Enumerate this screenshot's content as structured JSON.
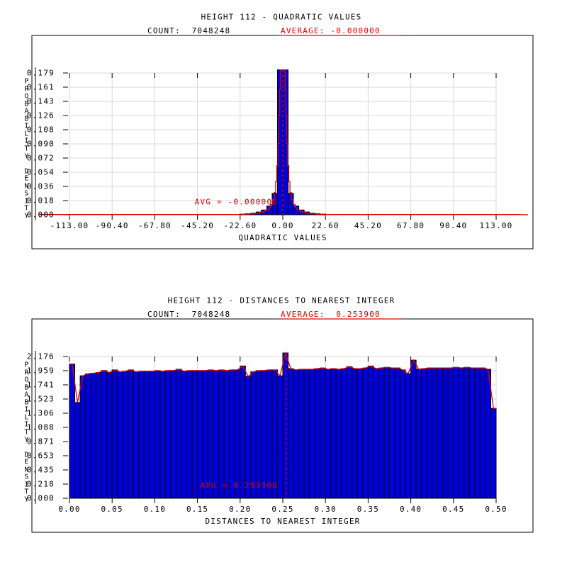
{
  "page": {
    "background": "#ffffff"
  },
  "colors": {
    "bar_fill": "#0000dd",
    "bar_edge": "#000000",
    "curve": "#dd0000",
    "avg_line": "#dd0000",
    "grid": "#d9d9d9",
    "axis": "#000000",
    "text": "#000000"
  },
  "chart_data": [
    {
      "type": "bar",
      "id": "quadratic-values-histogram",
      "title": "HEIGHT 112 - QUADRATIC VALUES",
      "count_label": "COUNT:  7048248",
      "average_label": "AVERAGE: -0.000000",
      "xlabel": "QUADRATIC VALUES",
      "ylabel": "PROBABILITY DENSITY",
      "xlim": [
        -113,
        113
      ],
      "ylim": [
        0,
        0.179
      ],
      "grid": true,
      "xticks": [
        "-113.00",
        "-90.40",
        "-67.80",
        "-45.20",
        "-22.60",
        "0.00",
        "22.60",
        "45.20",
        "67.80",
        "90.40",
        "113.00"
      ],
      "yticks": [
        "0.179",
        "0.161",
        "0.143",
        "0.126",
        "0.108",
        "0.090",
        "0.072",
        "0.054",
        "0.036",
        "0.018",
        "0.000"
      ],
      "bin_start": -113,
      "bin_width": 2.825,
      "values": [
        0,
        0,
        0,
        0,
        0,
        0,
        0,
        0,
        0,
        0,
        0,
        0,
        0,
        0,
        0,
        0,
        0,
        0,
        0,
        0,
        0,
        0,
        0,
        0,
        0,
        0,
        0,
        0,
        0,
        0,
        0,
        0,
        0.0008,
        0.0013,
        0.002,
        0.0035,
        0.006,
        0.011,
        0.027,
        0.183,
        0.183,
        0.027,
        0.011,
        0.006,
        0.0035,
        0.002,
        0.0013,
        0.0008,
        0,
        0,
        0,
        0,
        0,
        0,
        0,
        0,
        0,
        0,
        0,
        0,
        0,
        0,
        0,
        0,
        0,
        0,
        0,
        0,
        0,
        0,
        0,
        0,
        0,
        0,
        0,
        0,
        0,
        0,
        0,
        0
      ],
      "fit_curve_steps": [
        [
          -124,
          0.0003
        ],
        [
          -22.6,
          0.0007
        ],
        [
          -18,
          0.0012
        ],
        [
          -15,
          0.0018
        ],
        [
          -12.5,
          0.0028
        ],
        [
          -10.5,
          0.0042
        ],
        [
          -9,
          0.006
        ],
        [
          -7.5,
          0.009
        ],
        [
          -6.5,
          0.013
        ],
        [
          -5.5,
          0.019
        ],
        [
          -4.5,
          0.028
        ],
        [
          -3.8,
          0.042
        ],
        [
          -3.2,
          0.062
        ],
        [
          -2.6,
          0.09
        ],
        [
          -2.1,
          0.125
        ],
        [
          -1.6,
          0.158
        ],
        [
          -1.2,
          0.183
        ],
        [
          1.2,
          0.158
        ],
        [
          1.6,
          0.125
        ],
        [
          2.1,
          0.09
        ],
        [
          2.6,
          0.062
        ],
        [
          3.2,
          0.042
        ],
        [
          3.8,
          0.028
        ],
        [
          4.5,
          0.019
        ],
        [
          5.5,
          0.013
        ],
        [
          6.5,
          0.009
        ],
        [
          7.5,
          0.006
        ],
        [
          9,
          0.0042
        ],
        [
          10.5,
          0.0028
        ],
        [
          12.5,
          0.0018
        ],
        [
          15,
          0.0012
        ],
        [
          18,
          0.0007
        ],
        [
          22.6,
          0.0003
        ],
        [
          124,
          0.0003
        ]
      ],
      "avg_line_x": 0,
      "avg_annotation": "AVG = -0.000000"
    },
    {
      "type": "bar",
      "id": "distances-to-nearest-integer-histogram",
      "title": "HEIGHT 112 - DISTANCES TO NEAREST INTEGER",
      "count_label": "COUNT:  7048248",
      "average_label": "AVERAGE:  0.253900",
      "xlabel": "DISTANCES TO NEAREST INTEGER",
      "ylabel": "PROBABILITY DENSITY",
      "xlim": [
        0,
        0.5
      ],
      "ylim": [
        0,
        2.176
      ],
      "grid": true,
      "xticks": [
        "0.00",
        "0.05",
        "0.10",
        "0.15",
        "0.20",
        "0.25",
        "0.30",
        "0.35",
        "0.40",
        "0.45",
        "0.50"
      ],
      "yticks": [
        "2.176",
        "1.959",
        "1.741",
        "1.523",
        "1.306",
        "1.088",
        "0.871",
        "0.653",
        "0.435",
        "0.218",
        "0.000"
      ],
      "bin_start": 0,
      "bin_width": 0.00625,
      "values": [
        2.06,
        1.47,
        1.88,
        1.91,
        1.92,
        1.93,
        1.96,
        1.93,
        1.97,
        1.94,
        1.95,
        1.97,
        1.94,
        1.95,
        1.95,
        1.95,
        1.96,
        1.95,
        1.96,
        1.96,
        1.98,
        1.95,
        1.96,
        1.96,
        1.96,
        1.96,
        1.97,
        1.96,
        1.97,
        1.96,
        1.97,
        1.97,
        2.03,
        1.87,
        1.94,
        1.96,
        1.96,
        1.97,
        1.97,
        1.88,
        2.23,
        1.99,
        1.97,
        1.98,
        1.98,
        1.98,
        1.99,
        2.0,
        1.98,
        1.99,
        1.98,
        1.99,
        2.02,
        1.99,
        1.99,
        2.0,
        2.03,
        1.99,
        2.0,
        2.01,
        2.0,
        2.0,
        1.97,
        1.91,
        2.12,
        1.98,
        1.99,
        2.0,
        2.0,
        2.0,
        2.0,
        2.0,
        2.01,
        2.0,
        2.01,
        2.0,
        2.0,
        2.0,
        1.98,
        1.38
      ],
      "avg_line_x": 0.2539,
      "avg_annotation": "AVG = 0.253900"
    }
  ]
}
